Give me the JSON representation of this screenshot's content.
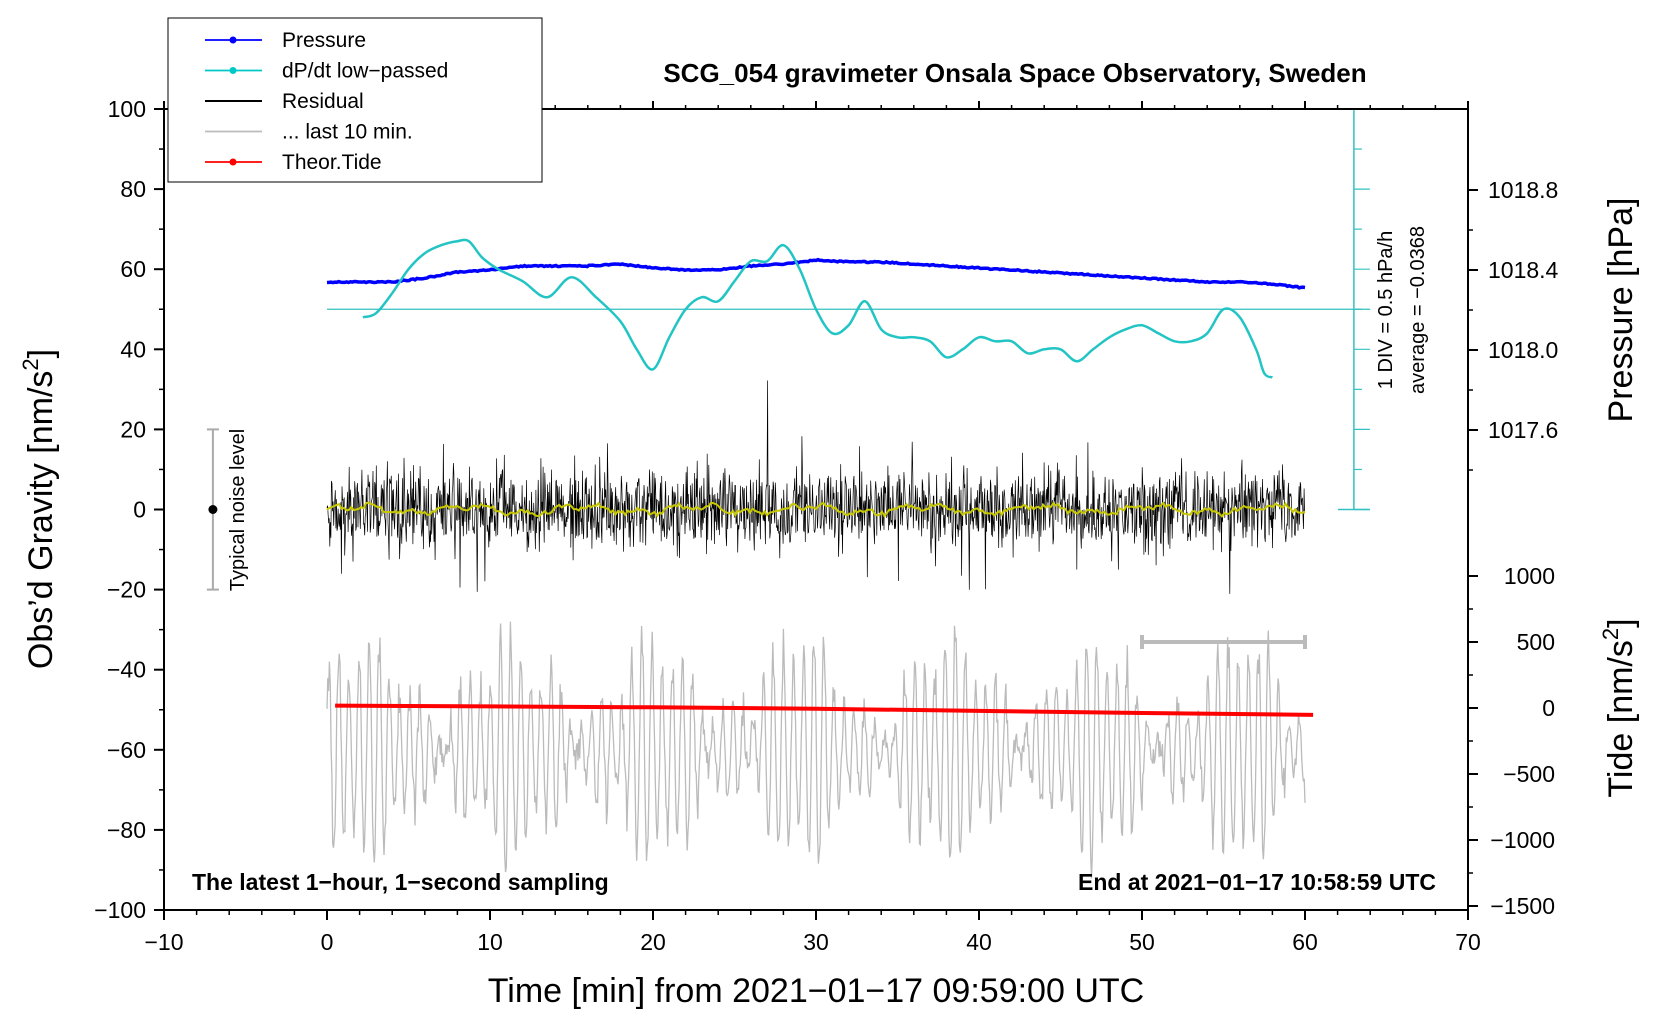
{
  "chart_data": {
    "type": "line",
    "title": "SCG_054 gravimeter Onsala Space Observatory, Sweden",
    "xlabel": "Time [min] from 2021−01−17 09:59:00 UTC",
    "ylabel_left": "Obs’d Gravity [nm/s²]",
    "ylabel_left_main": "Obs’d Gravity [nm/s",
    "ylabel_left_sup": "2",
    "ylabel_left_end": "]",
    "ylabel_right_pressure": "Pressure [hPa]",
    "ylabel_right_tide": "Tide [nm/s²]",
    "ylabel_right_tide_main": "Tide [nm/s",
    "ylabel_right_tide_sup": "2",
    "ylabel_right_tide_end": "]",
    "xlim": [
      -10,
      70
    ],
    "ylim": [
      -100,
      100
    ],
    "x_ticks": [
      "−10",
      "0",
      "10",
      "20",
      "30",
      "40",
      "50",
      "60",
      "70"
    ],
    "y_ticks": [
      "100",
      "80",
      "60",
      "40",
      "20",
      "0",
      "−20",
      "−40",
      "−60",
      "−80",
      "−100"
    ],
    "pressure_ticks": [
      "1018.8",
      "1018.4",
      "1018.0",
      "1017.6"
    ],
    "tide_ticks": [
      "1000",
      "500",
      "0",
      "−500",
      "−1000",
      "−1500"
    ],
    "legend": [
      {
        "label": "Pressure",
        "color": "#0000ff"
      },
      {
        "label": "dP/dt low−passed",
        "color": "#00c8c8"
      },
      {
        "label": "Residual",
        "color": "#000000"
      },
      {
        "label": "... last 10 min.",
        "color": "#bbbbbb"
      },
      {
        "label": "Theor.Tide",
        "color": "#ff0000"
      }
    ],
    "annotations": {
      "bottom_left": "The latest 1−hour, 1−second sampling",
      "bottom_right": "End at 2021−01−17 10:58:59 UTC",
      "noise_label": "Typical noise level",
      "div_label": "1 DIV = 0.5 hPa/h",
      "average_label": "average = −0.0368"
    },
    "series": [
      {
        "name": "Pressure",
        "axis": "pressure_hPa",
        "x": [
          0,
          2,
          4,
          6,
          8,
          10,
          12,
          14,
          16,
          18,
          20,
          22,
          24,
          26,
          28,
          30,
          32,
          34,
          36,
          38,
          40,
          42,
          44,
          46,
          48,
          50,
          52,
          54,
          56,
          58,
          60
        ],
        "values": [
          1018.34,
          1018.34,
          1018.34,
          1018.36,
          1018.39,
          1018.4,
          1018.42,
          1018.42,
          1018.42,
          1018.43,
          1018.41,
          1018.4,
          1018.4,
          1018.42,
          1018.43,
          1018.45,
          1018.44,
          1018.44,
          1018.43,
          1018.42,
          1018.41,
          1018.4,
          1018.39,
          1018.38,
          1018.37,
          1018.36,
          1018.35,
          1018.34,
          1018.34,
          1018.33,
          1018.31
        ]
      },
      {
        "name": "dP/dt low−passed",
        "axis": "left_nm",
        "x": [
          2.2,
          3,
          4,
          5,
          6,
          7,
          8,
          8.7,
          9.5,
          10.5,
          12,
          13.5,
          15,
          16.5,
          18,
          19,
          20,
          21,
          22,
          23,
          24,
          25,
          26,
          27,
          28,
          29,
          30,
          31,
          32,
          33,
          34,
          35,
          36,
          37,
          38,
          39,
          40,
          41,
          42,
          43,
          44,
          45,
          46,
          47,
          48,
          49,
          50,
          51,
          52,
          53,
          54,
          55,
          56,
          57,
          57.5,
          58
        ],
        "values": [
          48,
          49,
          54,
          60,
          64,
          66,
          67,
          67,
          63,
          60,
          57,
          53,
          58,
          53,
          47,
          40,
          35,
          43,
          50,
          53,
          52,
          57,
          62,
          62,
          66,
          60,
          50,
          44,
          46,
          52,
          45,
          43,
          43,
          42,
          38,
          40,
          43,
          42,
          42,
          39,
          40,
          40,
          37,
          40,
          43,
          45,
          46,
          44,
          42,
          42,
          44,
          50,
          48,
          40,
          34,
          33
        ]
      },
      {
        "name": "Residual",
        "axis": "left_nm",
        "x_range": [
          0,
          60
        ],
        "amplitude_typical": 12,
        "amplitude_max": 37
      },
      {
        "name": "... last 10 min.",
        "axis": "left_nm",
        "x_range": [
          0,
          60
        ],
        "center": -60,
        "amplitude_typical": 20,
        "amplitude_max": 30
      },
      {
        "name": "Theor.Tide",
        "axis": "tide_nm",
        "x": [
          0.5,
          10,
          20,
          30,
          40,
          50,
          60.5
        ],
        "values": [
          18,
          12,
          5,
          -5,
          -22,
          -38,
          -52
        ]
      },
      {
        "name": "Smoothed residual",
        "axis": "left_nm",
        "x_range": [
          0,
          60
        ],
        "values_approx": 0
      }
    ],
    "noise_bar": {
      "x": -7,
      "y": 0,
      "low": -20,
      "high": 20
    },
    "time_window_bar": {
      "x_start": 50,
      "x_end": 60,
      "tide_value": 500
    }
  }
}
